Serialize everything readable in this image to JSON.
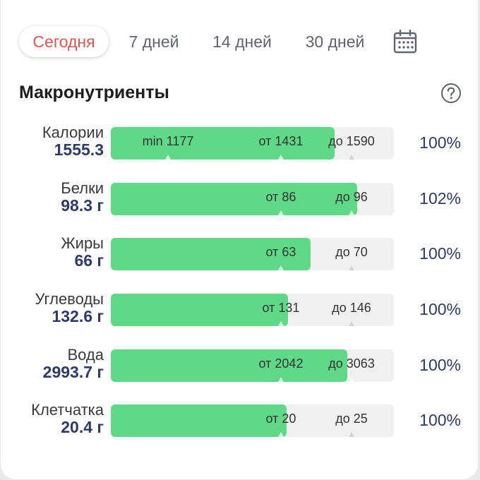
{
  "tabs": [
    {
      "label": "Сегодня",
      "active": true
    },
    {
      "label": "7 дней",
      "active": false
    },
    {
      "label": "14 дней",
      "active": false
    },
    {
      "label": "30 дней",
      "active": false
    }
  ],
  "section": {
    "title": "Макронутриенты"
  },
  "icons": {
    "calendar": "calendar-icon",
    "help": "help-icon"
  },
  "colors": {
    "accent": "#e6534f",
    "bar_fill": "#5fd987",
    "track": "#f0f0f0",
    "value": "#2e3a6a"
  },
  "nutrients": [
    {
      "name": "Калории",
      "value": "1555.3",
      "min_label": "min 1177",
      "from_label": "от 1431",
      "to_label": "до 1590",
      "percent": "100%",
      "fill_fraction": 0.79
    },
    {
      "name": "Белки",
      "value": "98.3 г",
      "min_label": "",
      "from_label": "от 86",
      "to_label": "до 96",
      "percent": "102%",
      "fill_fraction": 0.87
    },
    {
      "name": "Жиры",
      "value": "66 г",
      "min_label": "",
      "from_label": "от 63",
      "to_label": "до 70",
      "percent": "100%",
      "fill_fraction": 0.705
    },
    {
      "name": "Углеводы",
      "value": "132.6 г",
      "min_label": "",
      "from_label": "от 131",
      "to_label": "до 146",
      "percent": "100%",
      "fill_fraction": 0.625
    },
    {
      "name": "Вода",
      "value": "2993.7 г",
      "min_label": "",
      "from_label": "от 2042",
      "to_label": "до 3063",
      "percent": "100%",
      "fill_fraction": 0.835
    },
    {
      "name": "Клетчатка",
      "value": "20.4 г",
      "min_label": "",
      "from_label": "от 20",
      "to_label": "до 25",
      "percent": "100%",
      "fill_fraction": 0.62
    }
  ]
}
